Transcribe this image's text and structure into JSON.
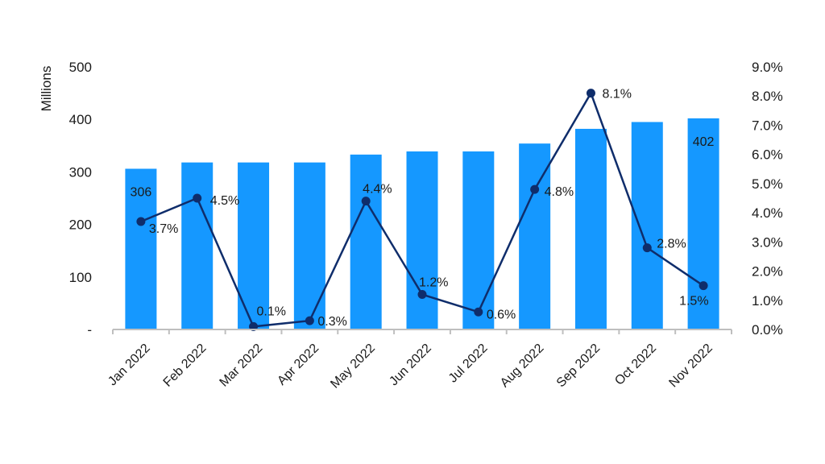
{
  "chart_data": {
    "type": "bar",
    "title": "",
    "xlabel": "",
    "ylabel": "Millions",
    "categories": [
      "Jan 2022",
      "Feb 2022",
      "Mar 2022",
      "Apr 2022",
      "May 2022",
      "Jun 2022",
      "Jul 2022",
      "Aug 2022",
      "Sep 2022",
      "Oct 2022",
      "Nov 2022"
    ],
    "series": [
      {
        "type": "bar",
        "axis": "left",
        "color": "#1598ff",
        "values": [
          306,
          318,
          318,
          318,
          333,
          339,
          339,
          354,
          382,
          395,
          402
        ],
        "labels": [
          "306",
          "",
          "",
          "",
          "",
          "",
          "",
          "",
          "",
          "",
          "402"
        ]
      },
      {
        "type": "line",
        "axis": "right",
        "color": "#0f2d6b",
        "values": [
          3.7,
          4.5,
          0.1,
          0.3,
          4.4,
          1.2,
          0.6,
          4.8,
          8.1,
          2.8,
          1.5
        ],
        "labels": [
          "3.7%",
          "4.5%",
          "0.1%",
          "0.3%",
          "4.4%",
          "1.2%",
          "0.6%",
          "4.8%",
          "8.1%",
          "2.8%",
          "1.5%"
        ]
      }
    ],
    "y_left": {
      "min": 0,
      "max": 500,
      "ticks": [
        "-",
        "100",
        "200",
        "300",
        "400",
        "500"
      ]
    },
    "y_right": {
      "min": 0,
      "max": 9,
      "ticks": [
        "0.0%",
        "1.0%",
        "2.0%",
        "3.0%",
        "4.0%",
        "5.0%",
        "6.0%",
        "7.0%",
        "8.0%",
        "9.0%"
      ]
    },
    "grid": false,
    "legend": "none"
  }
}
